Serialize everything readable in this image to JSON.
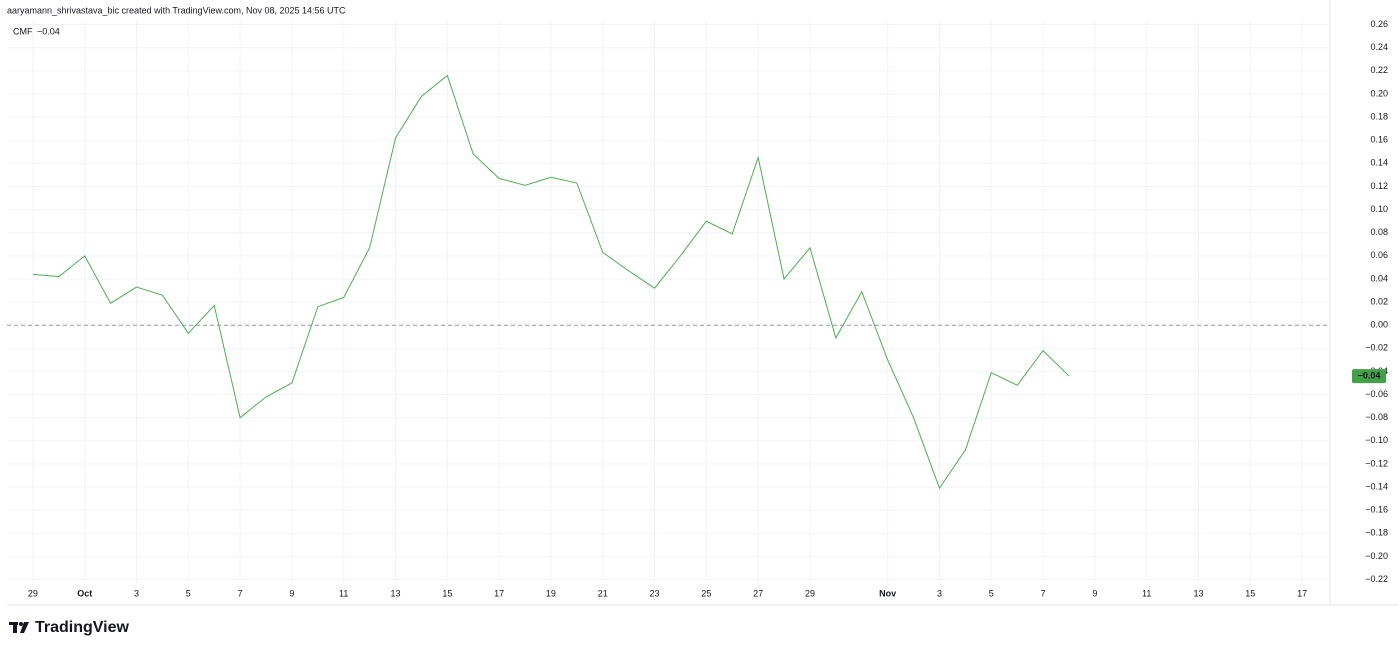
{
  "header": "aaryamann_shrivastava_bic created with TradingView.com, Nov 08, 2025 14:56 UTC",
  "brand": "TradingView",
  "chart_data": {
    "type": "line",
    "x": [
      "Sep 29",
      "Sep 30",
      "Oct 1",
      "Oct 2",
      "Oct 3",
      "Oct 4",
      "Oct 5",
      "Oct 6",
      "Oct 7",
      "Oct 8",
      "Oct 9",
      "Oct 10",
      "Oct 11",
      "Oct 12",
      "Oct 13",
      "Oct 14",
      "Oct 15",
      "Oct 16",
      "Oct 17",
      "Oct 18",
      "Oct 19",
      "Oct 20",
      "Oct 21",
      "Oct 22",
      "Oct 23",
      "Oct 24",
      "Oct 25",
      "Oct 26",
      "Oct 27",
      "Oct 28",
      "Oct 29",
      "Oct 30",
      "Oct 31",
      "Nov 1",
      "Nov 2",
      "Nov 3",
      "Nov 4",
      "Nov 5",
      "Nov 6",
      "Nov 7",
      "Nov 8"
    ],
    "series": [
      {
        "name": "CMF",
        "color": "#4caf50",
        "values": [
          0.044,
          0.042,
          0.06,
          0.019,
          0.033,
          0.026,
          -0.007,
          0.017,
          -0.08,
          -0.062,
          -0.05,
          0.016,
          0.024,
          0.067,
          0.162,
          0.198,
          0.216,
          0.148,
          0.127,
          0.121,
          0.128,
          0.123,
          0.063,
          0.047,
          0.032,
          0.06,
          0.09,
          0.079,
          0.145,
          0.04,
          0.067,
          -0.011,
          0.029,
          -0.03,
          -0.08,
          -0.141,
          -0.108,
          -0.041,
          -0.052,
          -0.022,
          -0.044
        ],
        "last_value": {
          "value": -0.044,
          "label": "−0.04"
        }
      }
    ],
    "xlim": [
      "Sep 28",
      "Nov 18"
    ],
    "xticks": [
      {
        "value": "Sep 29",
        "label": "29"
      },
      {
        "value": "Oct 1",
        "label": "Oct"
      },
      {
        "value": "Oct 3",
        "label": "3"
      },
      {
        "value": "Oct 5",
        "label": "5"
      },
      {
        "value": "Oct 7",
        "label": "7"
      },
      {
        "value": "Oct 9",
        "label": "9"
      },
      {
        "value": "Oct 11",
        "label": "11"
      },
      {
        "value": "Oct 13",
        "label": "13"
      },
      {
        "value": "Oct 15",
        "label": "15"
      },
      {
        "value": "Oct 17",
        "label": "17"
      },
      {
        "value": "Oct 19",
        "label": "19"
      },
      {
        "value": "Oct 21",
        "label": "21"
      },
      {
        "value": "Oct 23",
        "label": "23"
      },
      {
        "value": "Oct 25",
        "label": "25"
      },
      {
        "value": "Oct 27",
        "label": "27"
      },
      {
        "value": "Oct 29",
        "label": "29"
      },
      {
        "value": "Nov 1",
        "label": "Nov"
      },
      {
        "value": "Nov 3",
        "label": "3"
      },
      {
        "value": "Nov 5",
        "label": "5"
      },
      {
        "value": "Nov 7",
        "label": "7"
      },
      {
        "value": "Nov 9",
        "label": "9"
      },
      {
        "value": "Nov 11",
        "label": "11"
      },
      {
        "value": "Nov 13",
        "label": "13"
      },
      {
        "value": "Nov 15",
        "label": "15"
      },
      {
        "value": "Nov 17",
        "label": "17"
      }
    ],
    "ylim": [
      -0.223,
      0.264
    ],
    "yticks": [
      {
        "value": -0.22,
        "label": "−0.22"
      },
      {
        "value": -0.2,
        "label": "−0.20"
      },
      {
        "value": -0.18,
        "label": "−0.18"
      },
      {
        "value": -0.16,
        "label": "−0.16"
      },
      {
        "value": -0.14,
        "label": "−0.14"
      },
      {
        "value": -0.12,
        "label": "−0.12"
      },
      {
        "value": -0.1,
        "label": "−0.10"
      },
      {
        "value": -0.08,
        "label": "−0.08"
      },
      {
        "value": -0.06,
        "label": "−0.06"
      },
      {
        "value": -0.04,
        "label": "−0.04"
      },
      {
        "value": -0.02,
        "label": "−0.02"
      },
      {
        "value": 0,
        "label": "0.00"
      },
      0.02,
      0.04,
      0.06,
      0.08,
      {
        "value": 0.1,
        "label": "0.10"
      },
      0.12,
      0.14,
      0.16,
      0.18,
      {
        "value": 0.2,
        "label": "0.20"
      },
      0.22,
      0.24,
      0.26
    ],
    "zero_line": 0,
    "grid": true
  }
}
